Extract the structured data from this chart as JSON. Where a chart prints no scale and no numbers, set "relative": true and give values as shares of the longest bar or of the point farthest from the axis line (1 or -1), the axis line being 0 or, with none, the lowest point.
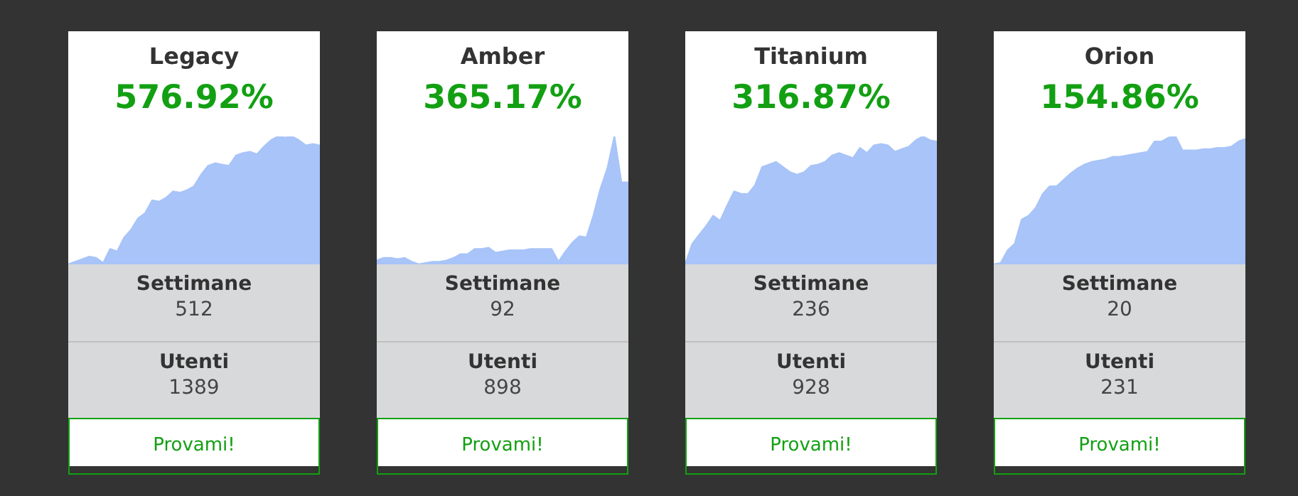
{
  "chart_data": [
    {
      "type": "area",
      "title": "Legacy",
      "subtitle": "576.92%",
      "relative": true,
      "color": "#a8c4f8",
      "categories": [
        null,
        null,
        null,
        null,
        null,
        null,
        null,
        null,
        null,
        null,
        null,
        null,
        null,
        null,
        null,
        null,
        null,
        null,
        null,
        null,
        null,
        null,
        null,
        null,
        null,
        null,
        null,
        null,
        null,
        null,
        null,
        null,
        null,
        null,
        null,
        null,
        null
      ],
      "values": [
        0,
        0.02,
        0.04,
        0.06,
        0.05,
        0.01,
        0.12,
        0.1,
        0.21,
        0.27,
        0.36,
        0.4,
        0.5,
        0.49,
        0.52,
        0.57,
        0.56,
        0.58,
        0.61,
        0.7,
        0.77,
        0.79,
        0.78,
        0.77,
        0.85,
        0.87,
        0.88,
        0.86,
        0.92,
        0.97,
        1,
        0.99,
        1,
        0.97,
        0.93,
        0.94,
        0.93
      ],
      "annotations": [
        "Settimane",
        "512",
        "Utenti",
        "1389",
        "Provami!"
      ]
    },
    {
      "type": "area",
      "title": "Amber",
      "subtitle": "365.17%",
      "relative": true,
      "color": "#a8c4f8",
      "categories": [
        null,
        null,
        null,
        null,
        null,
        null,
        null,
        null,
        null,
        null,
        null,
        null,
        null,
        null,
        null,
        null,
        null,
        null,
        null,
        null,
        null,
        null,
        null,
        null,
        null,
        null,
        null,
        null,
        null,
        null,
        null,
        null,
        null,
        null,
        null,
        null,
        null
      ],
      "values": [
        0.03,
        0.05,
        0.05,
        0.04,
        0.05,
        0.02,
        0,
        0.01,
        0.02,
        0.02,
        0.03,
        0.05,
        0.08,
        0.08,
        0.12,
        0.12,
        0.13,
        0.09,
        0.1,
        0.11,
        0.11,
        0.11,
        0.12,
        0.12,
        0.12,
        0.12,
        0.02,
        0.1,
        0.17,
        0.22,
        0.21,
        0.38,
        0.59,
        0.75,
        1,
        0.64,
        0.64
      ],
      "annotations": [
        "Settimane",
        "92",
        "Utenti",
        "898",
        "Provami!"
      ]
    },
    {
      "type": "area",
      "title": "Titanium",
      "subtitle": "316.87%",
      "relative": true,
      "color": "#a8c4f8",
      "categories": [
        null,
        null,
        null,
        null,
        null,
        null,
        null,
        null,
        null,
        null,
        null,
        null,
        null,
        null,
        null,
        null,
        null,
        null,
        null,
        null,
        null,
        null,
        null,
        null,
        null,
        null,
        null,
        null,
        null,
        null,
        null,
        null,
        null,
        null,
        null,
        null,
        null
      ],
      "values": [
        0,
        0.16,
        0.23,
        0.3,
        0.38,
        0.34,
        0.46,
        0.57,
        0.55,
        0.55,
        0.62,
        0.76,
        0.78,
        0.8,
        0.76,
        0.72,
        0.7,
        0.72,
        0.77,
        0.78,
        0.8,
        0.85,
        0.87,
        0.85,
        0.83,
        0.91,
        0.87,
        0.93,
        0.94,
        0.93,
        0.88,
        0.9,
        0.92,
        0.97,
        1,
        0.97,
        0.96
      ],
      "annotations": [
        "Settimane",
        "236",
        "Utenti",
        "928",
        "Provami!"
      ]
    },
    {
      "type": "area",
      "title": "Orion",
      "subtitle": "154.86%",
      "relative": true,
      "color": "#a8c4f8",
      "categories": [
        null,
        null,
        null,
        null,
        null,
        null,
        null,
        null,
        null,
        null,
        null,
        null,
        null,
        null,
        null,
        null,
        null,
        null,
        null,
        null,
        null,
        null,
        null,
        null,
        null,
        null,
        null,
        null,
        null,
        null,
        null,
        null,
        null,
        null,
        null,
        null,
        null
      ],
      "values": [
        0,
        0.01,
        0.11,
        0.16,
        0.35,
        0.38,
        0.44,
        0.55,
        0.61,
        0.61,
        0.66,
        0.71,
        0.75,
        0.78,
        0.8,
        0.81,
        0.82,
        0.84,
        0.84,
        0.85,
        0.86,
        0.87,
        0.88,
        0.96,
        0.96,
        0.99,
        1,
        0.89,
        0.89,
        0.89,
        0.9,
        0.9,
        0.91,
        0.91,
        0.92,
        0.96,
        0.98
      ],
      "annotations": [
        "Settimane",
        "20",
        "Utenti",
        "231",
        "Provami!"
      ]
    }
  ]
}
